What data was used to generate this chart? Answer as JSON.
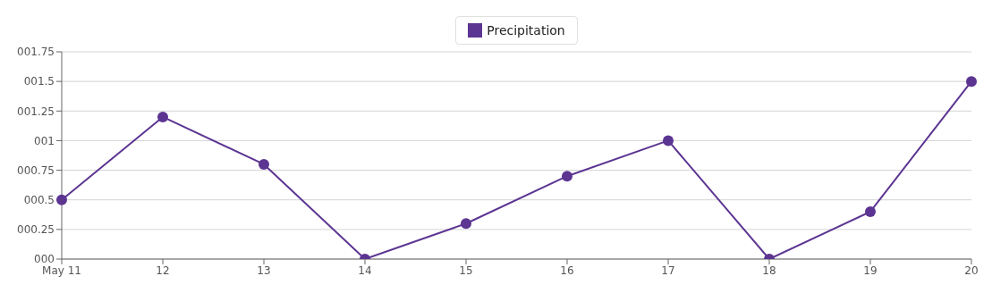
{
  "chart_data": {
    "type": "line",
    "categories": [
      "May 11",
      "12",
      "13",
      "14",
      "15",
      "16",
      "17",
      "18",
      "19",
      "20"
    ],
    "series": [
      {
        "name": "Precipitation",
        "color": "#5c3592",
        "values": [
          0.5,
          1.2,
          0.8,
          0,
          0.3,
          0.7,
          1.0,
          0,
          0.4,
          1.5
        ]
      }
    ],
    "ylim": [
      0,
      1.75
    ],
    "yticks": [
      {
        "value": 0,
        "label": "000"
      },
      {
        "value": 0.25,
        "label": "000.25"
      },
      {
        "value": 0.5,
        "label": "000.5"
      },
      {
        "value": 0.75,
        "label": "000.75"
      },
      {
        "value": 1,
        "label": "001"
      },
      {
        "value": 1.25,
        "label": "001.25"
      },
      {
        "value": 1.5,
        "label": "001.5"
      },
      {
        "value": 1.75,
        "label": "001.75"
      }
    ],
    "grid": "y",
    "legend": "top",
    "marker": "circle",
    "line_style": "solid"
  }
}
